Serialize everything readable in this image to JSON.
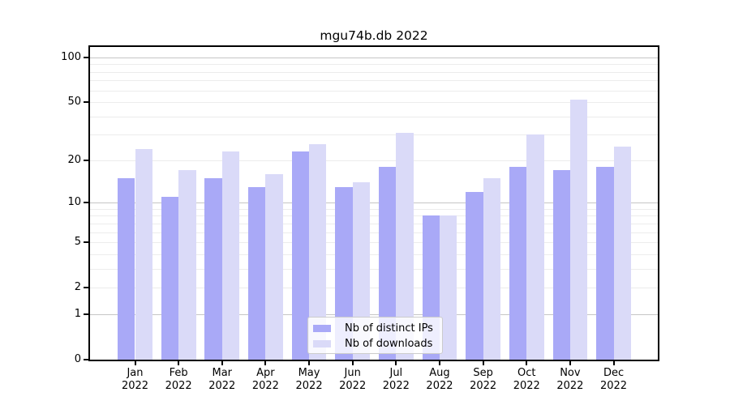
{
  "chart_data": {
    "type": "bar",
    "title": "mgu74b.db 2022",
    "categories": [
      "Jan",
      "Feb",
      "Mar",
      "Apr",
      "May",
      "Jun",
      "Jul",
      "Aug",
      "Sep",
      "Oct",
      "Nov",
      "Dec"
    ],
    "year_label": "2022",
    "series": [
      {
        "name": "Nb of distinct IPs",
        "color": "#a9a9f7",
        "values": [
          15,
          11,
          15,
          13,
          23,
          13,
          18,
          8,
          12,
          18,
          17,
          18
        ]
      },
      {
        "name": "Nb of downloads",
        "color": "#dadaf8",
        "values": [
          24,
          17,
          23,
          16,
          26,
          14,
          31,
          8,
          15,
          30,
          52,
          25
        ]
      }
    ],
    "y_axis": {
      "scale": "log1p",
      "tick_labels": [
        0,
        1,
        2,
        5,
        10,
        20,
        50,
        100
      ],
      "major_gridlines": [
        1,
        10,
        100
      ],
      "minor_gridlines": [
        2,
        3,
        4,
        5,
        6,
        7,
        8,
        9,
        20,
        30,
        40,
        50,
        60,
        70,
        80,
        90
      ],
      "ylim": [
        0,
        116
      ]
    },
    "legend": {
      "position": "bottom-center"
    },
    "grid": true
  }
}
